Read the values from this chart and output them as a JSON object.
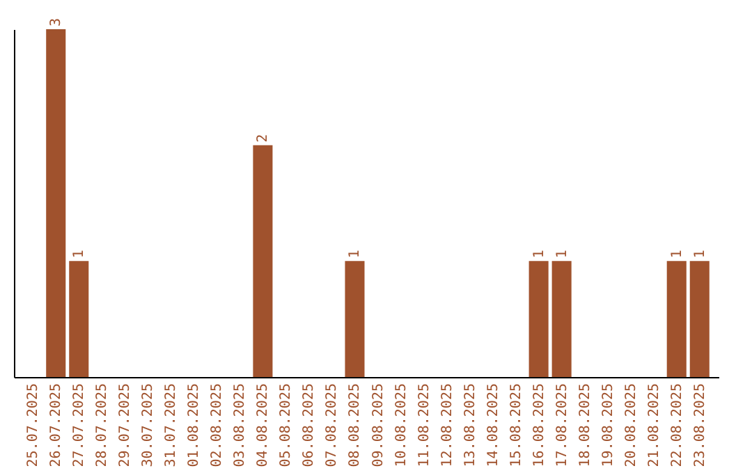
{
  "chart_data": {
    "type": "bar",
    "categories": [
      "25.07.2025",
      "26.07.2025",
      "27.07.2025",
      "28.07.2025",
      "29.07.2025",
      "30.07.2025",
      "31.07.2025",
      "01.08.2025",
      "02.08.2025",
      "03.08.2025",
      "04.08.2025",
      "05.08.2025",
      "06.08.2025",
      "07.08.2025",
      "08.08.2025",
      "09.08.2025",
      "10.08.2025",
      "11.08.2025",
      "12.08.2025",
      "13.08.2025",
      "14.08.2025",
      "15.08.2025",
      "16.08.2025",
      "17.08.2025",
      "18.08.2025",
      "19.08.2025",
      "20.08.2025",
      "21.08.2025",
      "22.08.2025",
      "23.08.2025"
    ],
    "values": [
      0,
      3,
      1,
      0,
      0,
      0,
      0,
      0,
      0,
      0,
      2,
      0,
      0,
      0,
      1,
      0,
      0,
      0,
      0,
      0,
      0,
      0,
      1,
      1,
      0,
      0,
      0,
      0,
      1,
      1
    ],
    "value_labels": [
      null,
      "3",
      "1",
      null,
      null,
      null,
      null,
      null,
      null,
      null,
      "2",
      null,
      null,
      null,
      "1",
      null,
      null,
      null,
      null,
      null,
      null,
      null,
      "1",
      "1",
      null,
      null,
      null,
      null,
      "1",
      "1"
    ],
    "color": "#a0522d",
    "tick_labels": "x",
    "grid": false
  }
}
